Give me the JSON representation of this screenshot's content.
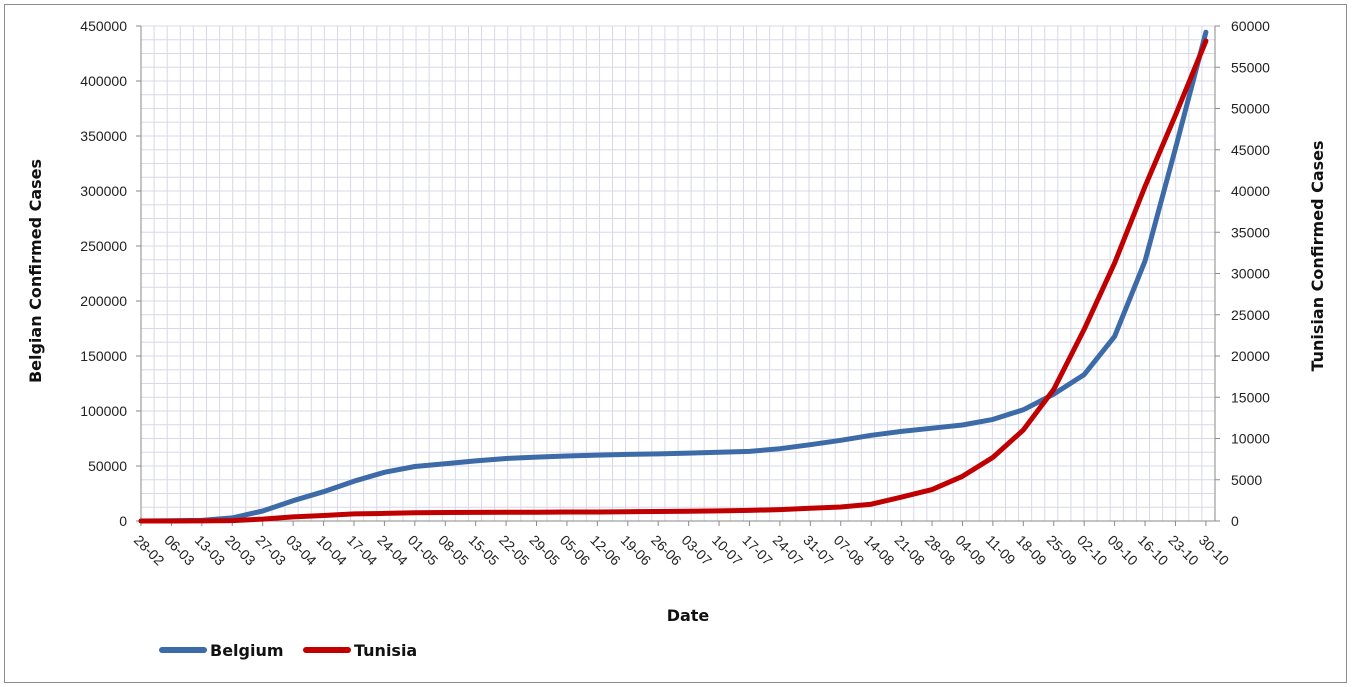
{
  "chart_data": {
    "type": "line",
    "xlabel": "Date",
    "ylabel_left": "Belgian Confirmed Cases",
    "ylabel_right": "Tunisian Confirmed Cases",
    "x_ticks": [
      "28-02",
      "06-03",
      "13-03",
      "20-03",
      "27-03",
      "03-04",
      "10-04",
      "17-04",
      "24-04",
      "01-05",
      "08-05",
      "15-05",
      "22-05",
      "29-05",
      "05-06",
      "12-06",
      "19-06",
      "26-06",
      "03-07",
      "10-07",
      "17-07",
      "24-07",
      "31-07",
      "07-08",
      "14-08",
      "21-08",
      "28-08",
      "04-09",
      "11-09",
      "18-09",
      "25-09",
      "02-10",
      "09-10",
      "16-10",
      "23-10",
      "30-10"
    ],
    "y_left_ticks": [
      "0",
      "50000",
      "100000",
      "150000",
      "200000",
      "250000",
      "300000",
      "350000",
      "400000",
      "450000"
    ],
    "y_right_ticks": [
      "0",
      "5000",
      "10000",
      "15000",
      "20000",
      "25000",
      "30000",
      "35000",
      "40000",
      "45000",
      "50000",
      "55000",
      "60000"
    ],
    "ylim_left": [
      0,
      450000
    ],
    "ylim_right": [
      0,
      60000
    ],
    "grid": true,
    "legend_position": "bottom-left",
    "series": [
      {
        "name": "Belgium",
        "axis": "left",
        "color": "#3d6ba8",
        "x": [
          "28-02",
          "06-03",
          "13-03",
          "20-03",
          "27-03",
          "03-04",
          "10-04",
          "17-04",
          "24-04",
          "01-05",
          "08-05",
          "15-05",
          "22-05",
          "29-05",
          "05-06",
          "12-06",
          "19-06",
          "26-06",
          "03-07",
          "10-07",
          "17-07",
          "24-07",
          "31-07",
          "07-08",
          "14-08",
          "21-08",
          "28-08",
          "04-09",
          "11-09",
          "18-09",
          "25-09",
          "02-10",
          "09-10",
          "16-10",
          "23-10",
          "30-10"
        ],
        "values": [
          1,
          169,
          559,
          2815,
          9134,
          18431,
          26667,
          36138,
          44293,
          49517,
          52011,
          54644,
          56810,
          58061,
          59072,
          59918,
          60550,
          61007,
          61727,
          62469,
          63238,
          65727,
          69402,
          73401,
          77932,
          81468,
          84349,
          87283,
          92390,
          101064,
          115352,
          133134,
          167808,
          236262,
          338540,
          444394
        ]
      },
      {
        "name": "Tunisia",
        "axis": "right",
        "color": "#c00000",
        "x": [
          "28-02",
          "06-03",
          "13-03",
          "20-03",
          "27-03",
          "03-04",
          "10-04",
          "17-04",
          "24-04",
          "01-05",
          "08-05",
          "15-05",
          "22-05",
          "29-05",
          "05-06",
          "12-06",
          "19-06",
          "26-06",
          "03-07",
          "10-07",
          "17-07",
          "24-07",
          "31-07",
          "07-08",
          "14-08",
          "21-08",
          "28-08",
          "04-09",
          "11-09",
          "18-09",
          "25-09",
          "02-10",
          "09-10",
          "16-10",
          "23-10",
          "30-10"
        ],
        "values": [
          0,
          2,
          16,
          54,
          227,
          495,
          671,
          866,
          918,
          1009,
          1025,
          1037,
          1049,
          1069,
          1087,
          1096,
          1132,
          1157,
          1188,
          1221,
          1289,
          1381,
          1535,
          1699,
          2039,
          2893,
          3803,
          5417,
          7704,
          11025,
          15938,
          23231,
          31259,
          40542,
          49175,
          58186
        ]
      }
    ]
  }
}
